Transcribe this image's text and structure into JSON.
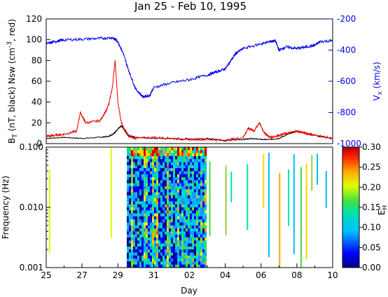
{
  "chart_data": [
    {
      "type": "line",
      "title": "Jan 25 - Feb 10, 1995",
      "ylabel_left_parts": [
        "B",
        "T",
        " (nT, black) Nsw (cm",
        "-3",
        ", red)"
      ],
      "ylabel_right_parts": [
        "V",
        "x",
        " (km/s)"
      ],
      "ylim_left": [
        0,
        120
      ],
      "ylim_right": [
        -1000,
        -200
      ],
      "yticks_left": [
        "0",
        "20",
        "40",
        "60",
        "80",
        "100",
        "120"
      ],
      "yticks_right": [
        "-200",
        "-400",
        "-600",
        "-800",
        "-1000"
      ],
      "xlim": [
        25,
        41
      ],
      "colors": {
        "bt": "#000000",
        "nsw": "#ee0000",
        "vx": "#0000ee"
      },
      "series": [
        {
          "key": "bt",
          "x": [
            25,
            26,
            27,
            28,
            28.5,
            28.8,
            29.0,
            29.2,
            29.4,
            29.6,
            30,
            31,
            32,
            33,
            34,
            34.5,
            35,
            36,
            36.5,
            37,
            37.5,
            38,
            38.5,
            39,
            39.5,
            40,
            41
          ],
          "y": [
            5,
            6,
            5,
            6,
            7,
            10,
            14,
            17,
            13,
            8,
            6,
            5,
            5,
            4,
            5,
            4,
            3,
            4,
            5,
            4,
            4,
            5,
            9,
            12,
            10,
            8,
            5
          ]
        },
        {
          "key": "nsw",
          "x": [
            25,
            25.5,
            26,
            26.7,
            26.9,
            27.2,
            28,
            28.3,
            28.5,
            28.7,
            28.85,
            29.0,
            29.2,
            29.4,
            29.6,
            30,
            31,
            32,
            33,
            34,
            35,
            36,
            36.3,
            36.6,
            36.9,
            37.2,
            37.5,
            38,
            38.5,
            39,
            39.5,
            40,
            41
          ],
          "y": [
            7,
            8,
            9,
            12,
            30,
            20,
            22,
            30,
            38,
            55,
            80,
            40,
            20,
            12,
            7,
            5,
            6,
            5,
            4,
            4,
            3,
            6,
            15,
            12,
            20,
            10,
            6,
            8,
            10,
            12,
            10,
            8,
            5
          ]
        },
        {
          "key": "vx",
          "x": [
            25,
            25.5,
            26,
            27,
            28,
            28.7,
            29.0,
            29.3,
            29.6,
            30,
            30.4,
            30.8,
            31,
            32,
            33,
            34,
            34.5,
            35,
            35.3,
            35.6,
            36,
            37,
            37.5,
            37.8,
            38,
            38.4,
            39,
            39.5,
            40,
            40.3,
            41
          ],
          "y": [
            -360,
            -345,
            -335,
            -330,
            -325,
            -320,
            -345,
            -420,
            -530,
            -650,
            -700,
            -690,
            -640,
            -610,
            -590,
            -560,
            -540,
            -520,
            -470,
            -420,
            -390,
            -360,
            -345,
            -340,
            -400,
            -380,
            -390,
            -380,
            -370,
            -345,
            -340
          ]
        }
      ]
    },
    {
      "type": "heatmap",
      "ylabel": "Frequency (Hz)",
      "xlabel": "Day",
      "ylim": [
        0.001,
        0.1
      ],
      "yscale": "log",
      "yticks": [
        "0.001",
        "0.010",
        "0.100"
      ],
      "xticks": [
        "25",
        "27",
        "29",
        "31",
        "02",
        "04",
        "06",
        "08",
        "10"
      ],
      "xlim": [
        25,
        41
      ],
      "colorbar": {
        "label_parts": [
          "E",
          "H"
        ],
        "range": [
          0,
          0.3
        ],
        "ticks": [
          "0.00",
          "0.05",
          "0.10",
          "0.15",
          "0.20",
          "0.25",
          "0.30"
        ]
      },
      "dense_interval": [
        29.5,
        33.9
      ],
      "sparse_lines_day": [
        25.15,
        28.6,
        34.1,
        35.0,
        35.3,
        36.2,
        37.1,
        37.4,
        38.0,
        38.5,
        38.8,
        39.2,
        39.5,
        39.8,
        40.1,
        40.6
      ]
    }
  ]
}
